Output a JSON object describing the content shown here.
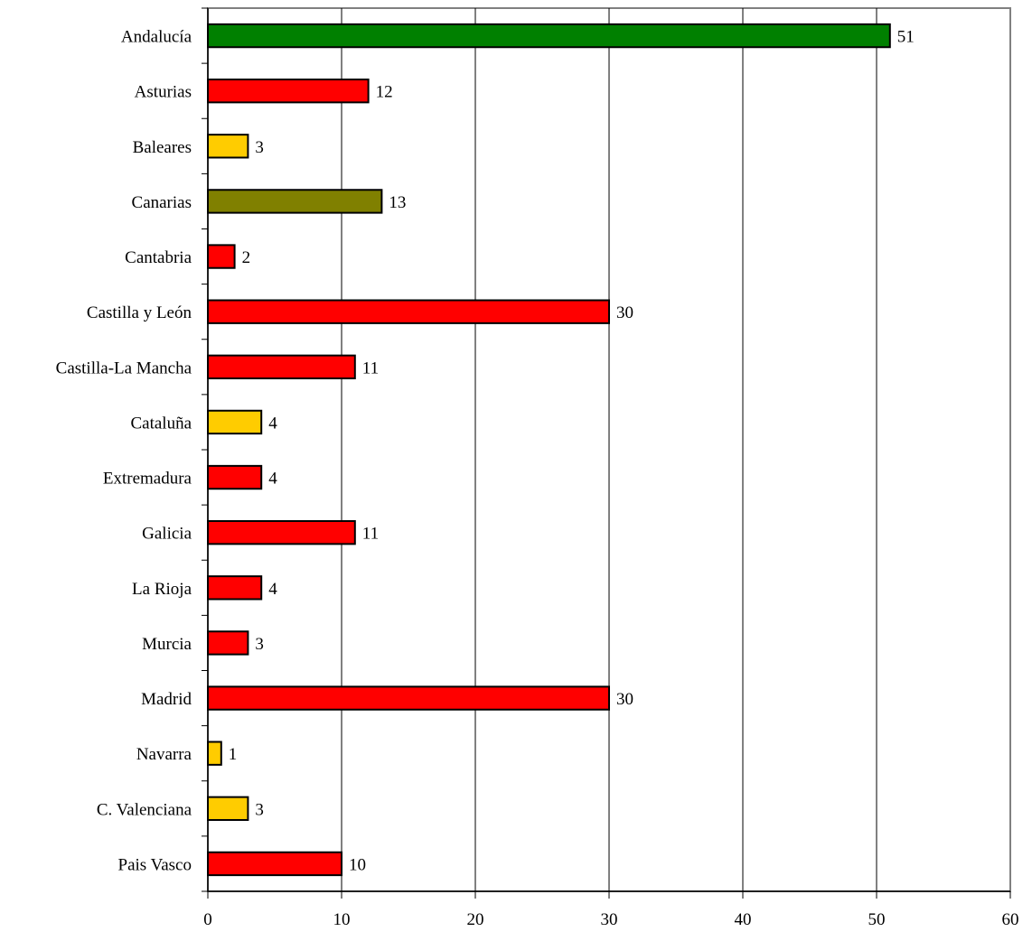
{
  "chart_data": {
    "type": "bar",
    "orientation": "horizontal",
    "categories": [
      "Andalucía",
      "Asturias",
      "Baleares",
      "Canarias",
      "Cantabria",
      "Castilla y León",
      "Castilla-La Mancha",
      "Cataluña",
      "Extremadura",
      "Galicia",
      "La Rioja",
      "Murcia",
      "Madrid",
      "Navarra",
      "C. Valenciana",
      "Pais Vasco"
    ],
    "values": [
      51,
      12,
      3,
      13,
      2,
      30,
      11,
      4,
      4,
      11,
      4,
      3,
      30,
      1,
      3,
      10
    ],
    "bar_colors": [
      "#008000",
      "#ff0000",
      "#ffcc00",
      "#808000",
      "#ff0000",
      "#ff0000",
      "#ff0000",
      "#ffcc00",
      "#ff0000",
      "#ff0000",
      "#ff0000",
      "#ff0000",
      "#ff0000",
      "#ffcc00",
      "#ffcc00",
      "#ff0000"
    ],
    "data_labels": [
      "51",
      "12",
      "3",
      "13",
      "2",
      "30",
      "11",
      "4",
      "4",
      "11",
      "4",
      "3",
      "30",
      "1",
      "3",
      "10"
    ],
    "x_ticks": [
      0,
      10,
      20,
      30,
      40,
      50,
      60
    ],
    "x_tick_labels": [
      "0",
      "10",
      "20",
      "30",
      "40",
      "50",
      "60"
    ],
    "xlim": [
      0,
      60
    ],
    "grid": "vertical",
    "legend": "none",
    "title": "",
    "xlabel": "",
    "ylabel": ""
  }
}
